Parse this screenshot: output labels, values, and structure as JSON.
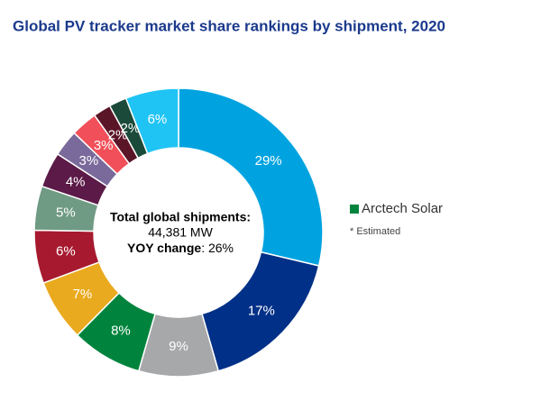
{
  "chart_data": {
    "type": "donut",
    "title": "Global PV tracker market share rankings by shipment, 2020",
    "categories": [
      null,
      null,
      null,
      "Arctech Solar",
      null,
      null,
      null,
      null,
      null,
      null,
      null,
      null,
      null
    ],
    "values": [
      29,
      17,
      9,
      8,
      7,
      6,
      5,
      4,
      3,
      3,
      2,
      2,
      6
    ],
    "value_labels": [
      "29%",
      "17%",
      "9%",
      "8%",
      "7%",
      "6%",
      "5%",
      "4%",
      "3%",
      "3%",
      "2%",
      "2%",
      "6%"
    ],
    "colors": [
      "#00a3e0",
      "#003087",
      "#a7a8aa",
      "#00843d",
      "#eaaa1f",
      "#a6192e",
      "#6f9a83",
      "#5b1a47",
      "#7a6a9b",
      "#f1505a",
      "#5a1526",
      "#1b4a3a",
      "#20c4f4"
    ],
    "center_text": {
      "title": "Total global shipments:",
      "total": "44,381 MW",
      "yoy_label": "YOY change",
      "yoy_value": ": 26%"
    },
    "note": "* Estimated"
  }
}
